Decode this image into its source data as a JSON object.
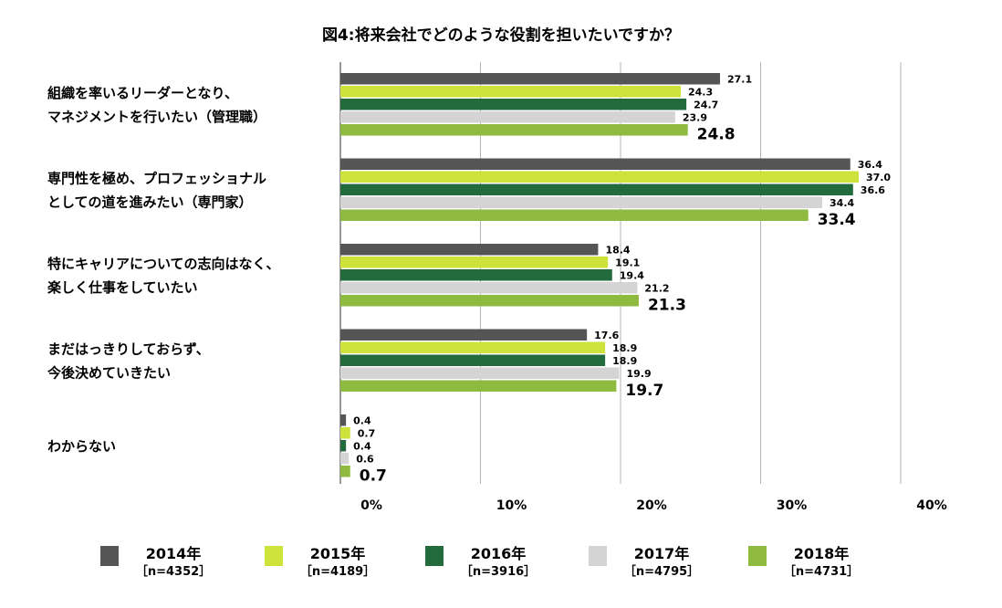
{
  "chart_data": {
    "type": "bar",
    "orientation": "horizontal",
    "title": "図4:将来会社でどのような役割を担いたいですか？",
    "categories": [
      [
        "組織を率いるリーダーとなり、",
        "マネジメントを行いたい（管理職）"
      ],
      [
        "専門性を極め、プロフェッショナル",
        "としての道を進みたい（専門家）"
      ],
      [
        "特にキャリアについての志向はなく、",
        "楽しく仕事をしていたい"
      ],
      [
        "まだはっきりしておらず、",
        "今後決めていきたい"
      ],
      [
        "わからない"
      ]
    ],
    "series": [
      {
        "name": "2014年",
        "n": "［n=4352］",
        "color": "#555555",
        "values": [
          27.1,
          36.4,
          18.4,
          17.6,
          0.4
        ]
      },
      {
        "name": "2015年",
        "n": "［n=4189］",
        "color": "#cde23a",
        "values": [
          24.3,
          37.0,
          19.1,
          18.9,
          0.7
        ]
      },
      {
        "name": "2016年",
        "n": "［n=3916］",
        "color": "#236b3c",
        "values": [
          24.7,
          36.6,
          19.4,
          18.9,
          0.4
        ]
      },
      {
        "name": "2017年",
        "n": "［n=4795］",
        "color": "#d4d4d4",
        "values": [
          23.9,
          34.4,
          21.2,
          19.9,
          0.6
        ]
      },
      {
        "name": "2018年",
        "n": "［n=4731］",
        "color": "#8dba3f",
        "values": [
          24.8,
          33.4,
          21.3,
          19.7,
          0.7
        ]
      }
    ],
    "value_labels": [
      [
        "27.1",
        "36.4",
        "18.4",
        "17.6",
        "0.4"
      ],
      [
        "24.3",
        "37.0",
        "19.1",
        "18.9",
        "0.7"
      ],
      [
        "24.7",
        "36.6",
        "19.4",
        "18.9",
        "0.4"
      ],
      [
        "23.9",
        "34.4",
        "21.2",
        "19.9",
        "0.6"
      ],
      [
        "24.8",
        "33.4",
        "21.3",
        "19.7",
        "0.7"
      ]
    ],
    "xlim": [
      0,
      40
    ],
    "xticks": [
      0,
      10,
      20,
      30,
      40
    ],
    "xtick_labels": [
      "0%",
      "10%",
      "20%",
      "30%",
      "40%"
    ],
    "grid": true,
    "legend_position": "bottom",
    "highlight_series": "2018年"
  }
}
